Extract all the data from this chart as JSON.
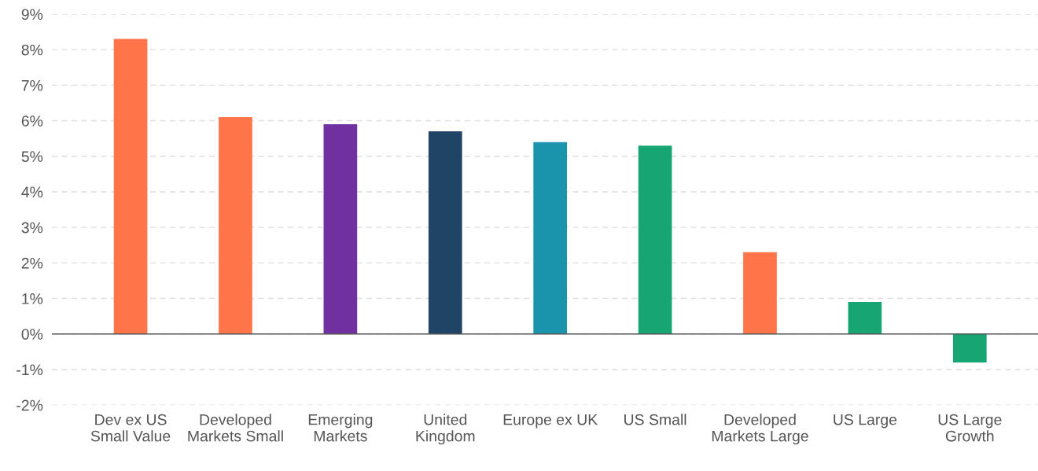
{
  "chart_data": {
    "type": "bar",
    "categories": [
      "Dev ex US\nSmall Value",
      "Developed\nMarkets Small",
      "Emerging\nMarkets",
      "United\nKingdom",
      "Europe ex UK",
      "US Small",
      "Developed\nMarkets Large",
      "US Large",
      "US Large\nGrowth"
    ],
    "values": [
      8.3,
      6.1,
      5.9,
      5.7,
      5.4,
      5.3,
      2.3,
      0.9,
      -0.8
    ],
    "colors": [
      "#ff7449",
      "#ff7449",
      "#7030a0",
      "#1f4466",
      "#1a93ac",
      "#17a673",
      "#ff7449",
      "#17a673",
      "#17a673"
    ],
    "ylim": [
      -2,
      9
    ],
    "yticks": [
      {
        "value": -2,
        "label": "-2%"
      },
      {
        "value": -1,
        "label": "-1%"
      },
      {
        "value": 0,
        "label": "0%"
      },
      {
        "value": 1,
        "label": "1%"
      },
      {
        "value": 2,
        "label": "2%"
      },
      {
        "value": 3,
        "label": "3%"
      },
      {
        "value": 4,
        "label": "4%"
      },
      {
        "value": 5,
        "label": "5%"
      },
      {
        "value": 6,
        "label": "6%"
      },
      {
        "value": 7,
        "label": "7%"
      },
      {
        "value": 8,
        "label": "8%"
      },
      {
        "value": 9,
        "label": "9%"
      }
    ],
    "grid": "y"
  }
}
